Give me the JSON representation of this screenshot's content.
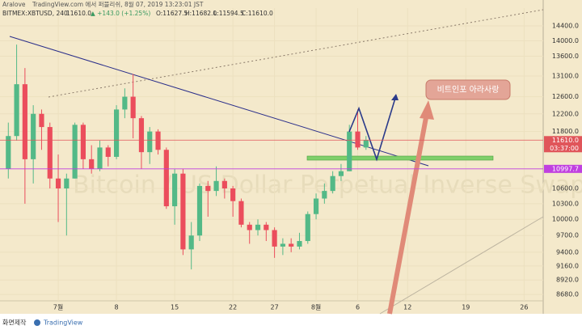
{
  "chart_data": {
    "type": "candlestick",
    "author": "Aralove",
    "published": "TradingView.com 에서 퍼블리쉬, 8월 07, 2019 13:23:01 JST",
    "symbol": "BITMEX:XBTUSD, 240",
    "last": "11610.0",
    "change": "▲ +143.0 (+1.25%)",
    "ohlc": [
      "O:11627.5",
      "H:11682.0",
      "L:11594.5",
      "C:11610.0"
    ],
    "watermark": "Bitcoin / US Dollar Perpetual Inverse Swap Contract",
    "annotation": "비트인포 아라사랑",
    "x": [
      -5,
      -4,
      -3,
      -2,
      -1,
      0,
      1,
      2,
      3,
      4,
      5,
      6,
      7,
      8,
      9,
      10,
      11,
      12,
      13,
      14,
      15,
      16,
      17,
      18,
      19,
      20,
      21,
      22,
      23,
      24,
      25,
      26,
      27,
      28,
      29,
      30,
      31,
      32,
      33,
      34,
      35,
      36,
      37,
      38
    ],
    "open": [
      11000,
      11700,
      12900,
      11200,
      12200,
      11900,
      10800,
      10600,
      10800,
      11950,
      11200,
      11000,
      11450,
      11250,
      12300,
      12600,
      12100,
      11350,
      11800,
      11400,
      10250,
      10900,
      9450,
      9700,
      10650,
      10550,
      10750,
      10600,
      10350,
      9900,
      9800,
      9900,
      9800,
      9500,
      9550,
      9500,
      9600,
      10100,
      10400,
      10550,
      10850,
      10950,
      11800,
      11450
    ],
    "high": [
      12000,
      13900,
      13300,
      12400,
      12300,
      12000,
      11300,
      10900,
      12000,
      12000,
      11500,
      11600,
      11500,
      12400,
      12800,
      13150,
      12150,
      11900,
      11850,
      11450,
      11000,
      11000,
      9950,
      10700,
      10750,
      11050,
      10800,
      10650,
      10400,
      9950,
      10000,
      9950,
      9850,
      9650,
      9650,
      9750,
      10150,
      10500,
      10700,
      10950,
      11100,
      11950,
      12300,
      11700
    ],
    "low": [
      10800,
      11600,
      10300,
      10700,
      11400,
      10600,
      9950,
      9700,
      10800,
      11000,
      10900,
      10950,
      11050,
      11200,
      12100,
      11650,
      11000,
      11100,
      11300,
      10200,
      9900,
      9350,
      9100,
      9600,
      10050,
      10450,
      10400,
      10050,
      9850,
      9550,
      9700,
      9600,
      9300,
      9350,
      9400,
      9450,
      9550,
      10000,
      10300,
      10500,
      10750,
      10950,
      11400,
      11400
    ],
    "close": [
      11700,
      12900,
      11200,
      12200,
      11900,
      10800,
      10600,
      10800,
      11950,
      11200,
      11000,
      11450,
      11250,
      12300,
      12600,
      12100,
      11350,
      11800,
      11400,
      10250,
      10900,
      9450,
      9700,
      10650,
      10550,
      10750,
      10600,
      10350,
      9900,
      9800,
      9900,
      9800,
      9500,
      9550,
      9500,
      9600,
      10100,
      10400,
      10550,
      10850,
      10950,
      11800,
      11450,
      11610
    ],
    "up_color": "#53b987",
    "down_color": "#eb4d5c",
    "xlim": [
      -6,
      59.3
    ],
    "xticks": [
      {
        "value": 1,
        "label": "7월"
      },
      8,
      15,
      22,
      27,
      {
        "value": 32,
        "label": "8월"
      },
      {
        "value": 37,
        "label": "6"
      },
      {
        "value": 43,
        "label": "12"
      },
      {
        "value": 50,
        "label": "19"
      },
      {
        "value": 57,
        "label": "26"
      }
    ],
    "ylim": [
      8370,
      14890
    ],
    "log_scale": true,
    "yticks": [
      {
        "value": 14400,
        "label": "14400.0"
      },
      {
        "value": 14000,
        "label": "14000.0"
      },
      {
        "value": 13600,
        "label": "13600.0"
      },
      {
        "value": 13100,
        "label": "13100.0"
      },
      {
        "value": 12600,
        "label": "12600.0"
      },
      {
        "value": 12200,
        "label": "12200.0"
      },
      {
        "value": 11800,
        "label": "11800.0"
      },
      {
        "value": 10600,
        "label": "10600.0"
      },
      {
        "value": 10300,
        "label": "10300.0"
      },
      {
        "value": 10000,
        "label": "10000.0"
      },
      {
        "value": 9700,
        "label": "9700.0"
      },
      {
        "value": 9400,
        "label": "9400.0"
      },
      {
        "value": 9160,
        "label": "9160.0"
      },
      {
        "value": 8920,
        "label": "8920.0"
      },
      {
        "value": 8680,
        "label": "8680.0"
      }
    ],
    "price_lines": [
      {
        "value": 11610,
        "label": "11610.0",
        "color": "#e0555a",
        "countdown": "03:37:00"
      },
      {
        "value": 10997.7,
        "color": "#c040e0"
      }
    ]
  },
  "footer": {
    "credit": "화면제작",
    "brand": "TradingView"
  }
}
